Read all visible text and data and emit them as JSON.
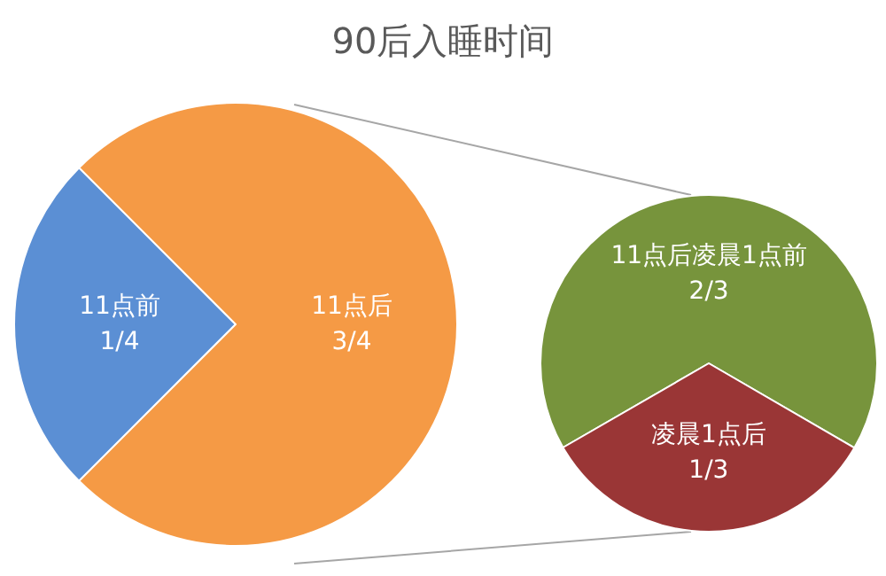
{
  "chart_data": [
    {
      "type": "pie",
      "title": "90后入睡时间",
      "categories": [
        "11点前",
        "11点后"
      ],
      "values": [
        0.25,
        0.75
      ],
      "value_labels": [
        "1/4",
        "3/4"
      ],
      "colors": [
        "#5b8fd4",
        "#f59a45"
      ],
      "legend": false
    },
    {
      "type": "pie",
      "categories": [
        "11点后凌晨1点前",
        "凌晨1点后"
      ],
      "values": [
        0.667,
        0.333
      ],
      "value_labels": [
        "2/3",
        "1/3"
      ],
      "colors": [
        "#77943c",
        "#9a3636"
      ],
      "legend": false
    }
  ]
}
